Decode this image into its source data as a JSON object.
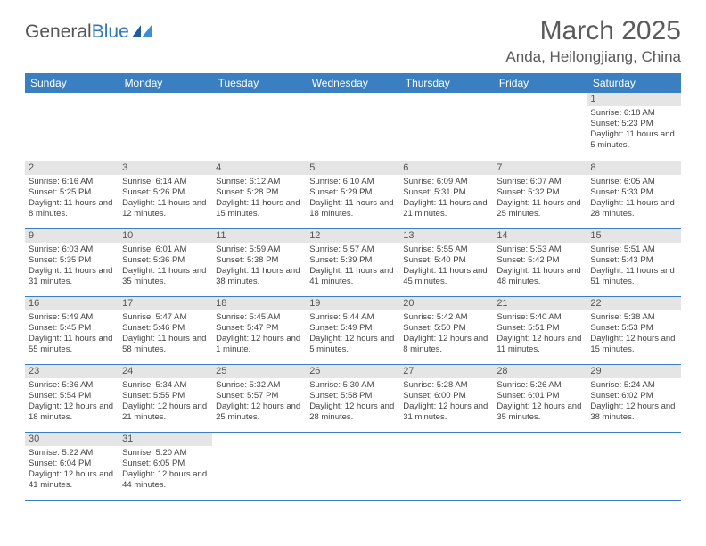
{
  "logo": {
    "part1": "General",
    "part2": "Blue"
  },
  "title": "March 2025",
  "location": "Anda, Heilongjiang, China",
  "colors": {
    "header_bg": "#3a7fc2",
    "header_text": "#ffffff",
    "daynum_bg": "#e5e5e5",
    "grid_line": "#3a7fc2",
    "text": "#444444"
  },
  "font": {
    "family": "Arial",
    "cell_size_pt": 7.5,
    "title_size_pt": 22
  },
  "weekdays": [
    "Sunday",
    "Monday",
    "Tuesday",
    "Wednesday",
    "Thursday",
    "Friday",
    "Saturday"
  ],
  "weeks": [
    [
      {
        "day": "",
        "sunrise": "",
        "sunset": "",
        "daylight": ""
      },
      {
        "day": "",
        "sunrise": "",
        "sunset": "",
        "daylight": ""
      },
      {
        "day": "",
        "sunrise": "",
        "sunset": "",
        "daylight": ""
      },
      {
        "day": "",
        "sunrise": "",
        "sunset": "",
        "daylight": ""
      },
      {
        "day": "",
        "sunrise": "",
        "sunset": "",
        "daylight": ""
      },
      {
        "day": "",
        "sunrise": "",
        "sunset": "",
        "daylight": ""
      },
      {
        "day": "1",
        "sunrise": "Sunrise: 6:18 AM",
        "sunset": "Sunset: 5:23 PM",
        "daylight": "Daylight: 11 hours and 5 minutes."
      }
    ],
    [
      {
        "day": "2",
        "sunrise": "Sunrise: 6:16 AM",
        "sunset": "Sunset: 5:25 PM",
        "daylight": "Daylight: 11 hours and 8 minutes."
      },
      {
        "day": "3",
        "sunrise": "Sunrise: 6:14 AM",
        "sunset": "Sunset: 5:26 PM",
        "daylight": "Daylight: 11 hours and 12 minutes."
      },
      {
        "day": "4",
        "sunrise": "Sunrise: 6:12 AM",
        "sunset": "Sunset: 5:28 PM",
        "daylight": "Daylight: 11 hours and 15 minutes."
      },
      {
        "day": "5",
        "sunrise": "Sunrise: 6:10 AM",
        "sunset": "Sunset: 5:29 PM",
        "daylight": "Daylight: 11 hours and 18 minutes."
      },
      {
        "day": "6",
        "sunrise": "Sunrise: 6:09 AM",
        "sunset": "Sunset: 5:31 PM",
        "daylight": "Daylight: 11 hours and 21 minutes."
      },
      {
        "day": "7",
        "sunrise": "Sunrise: 6:07 AM",
        "sunset": "Sunset: 5:32 PM",
        "daylight": "Daylight: 11 hours and 25 minutes."
      },
      {
        "day": "8",
        "sunrise": "Sunrise: 6:05 AM",
        "sunset": "Sunset: 5:33 PM",
        "daylight": "Daylight: 11 hours and 28 minutes."
      }
    ],
    [
      {
        "day": "9",
        "sunrise": "Sunrise: 6:03 AM",
        "sunset": "Sunset: 5:35 PM",
        "daylight": "Daylight: 11 hours and 31 minutes."
      },
      {
        "day": "10",
        "sunrise": "Sunrise: 6:01 AM",
        "sunset": "Sunset: 5:36 PM",
        "daylight": "Daylight: 11 hours and 35 minutes."
      },
      {
        "day": "11",
        "sunrise": "Sunrise: 5:59 AM",
        "sunset": "Sunset: 5:38 PM",
        "daylight": "Daylight: 11 hours and 38 minutes."
      },
      {
        "day": "12",
        "sunrise": "Sunrise: 5:57 AM",
        "sunset": "Sunset: 5:39 PM",
        "daylight": "Daylight: 11 hours and 41 minutes."
      },
      {
        "day": "13",
        "sunrise": "Sunrise: 5:55 AM",
        "sunset": "Sunset: 5:40 PM",
        "daylight": "Daylight: 11 hours and 45 minutes."
      },
      {
        "day": "14",
        "sunrise": "Sunrise: 5:53 AM",
        "sunset": "Sunset: 5:42 PM",
        "daylight": "Daylight: 11 hours and 48 minutes."
      },
      {
        "day": "15",
        "sunrise": "Sunrise: 5:51 AM",
        "sunset": "Sunset: 5:43 PM",
        "daylight": "Daylight: 11 hours and 51 minutes."
      }
    ],
    [
      {
        "day": "16",
        "sunrise": "Sunrise: 5:49 AM",
        "sunset": "Sunset: 5:45 PM",
        "daylight": "Daylight: 11 hours and 55 minutes."
      },
      {
        "day": "17",
        "sunrise": "Sunrise: 5:47 AM",
        "sunset": "Sunset: 5:46 PM",
        "daylight": "Daylight: 11 hours and 58 minutes."
      },
      {
        "day": "18",
        "sunrise": "Sunrise: 5:45 AM",
        "sunset": "Sunset: 5:47 PM",
        "daylight": "Daylight: 12 hours and 1 minute."
      },
      {
        "day": "19",
        "sunrise": "Sunrise: 5:44 AM",
        "sunset": "Sunset: 5:49 PM",
        "daylight": "Daylight: 12 hours and 5 minutes."
      },
      {
        "day": "20",
        "sunrise": "Sunrise: 5:42 AM",
        "sunset": "Sunset: 5:50 PM",
        "daylight": "Daylight: 12 hours and 8 minutes."
      },
      {
        "day": "21",
        "sunrise": "Sunrise: 5:40 AM",
        "sunset": "Sunset: 5:51 PM",
        "daylight": "Daylight: 12 hours and 11 minutes."
      },
      {
        "day": "22",
        "sunrise": "Sunrise: 5:38 AM",
        "sunset": "Sunset: 5:53 PM",
        "daylight": "Daylight: 12 hours and 15 minutes."
      }
    ],
    [
      {
        "day": "23",
        "sunrise": "Sunrise: 5:36 AM",
        "sunset": "Sunset: 5:54 PM",
        "daylight": "Daylight: 12 hours and 18 minutes."
      },
      {
        "day": "24",
        "sunrise": "Sunrise: 5:34 AM",
        "sunset": "Sunset: 5:55 PM",
        "daylight": "Daylight: 12 hours and 21 minutes."
      },
      {
        "day": "25",
        "sunrise": "Sunrise: 5:32 AM",
        "sunset": "Sunset: 5:57 PM",
        "daylight": "Daylight: 12 hours and 25 minutes."
      },
      {
        "day": "26",
        "sunrise": "Sunrise: 5:30 AM",
        "sunset": "Sunset: 5:58 PM",
        "daylight": "Daylight: 12 hours and 28 minutes."
      },
      {
        "day": "27",
        "sunrise": "Sunrise: 5:28 AM",
        "sunset": "Sunset: 6:00 PM",
        "daylight": "Daylight: 12 hours and 31 minutes."
      },
      {
        "day": "28",
        "sunrise": "Sunrise: 5:26 AM",
        "sunset": "Sunset: 6:01 PM",
        "daylight": "Daylight: 12 hours and 35 minutes."
      },
      {
        "day": "29",
        "sunrise": "Sunrise: 5:24 AM",
        "sunset": "Sunset: 6:02 PM",
        "daylight": "Daylight: 12 hours and 38 minutes."
      }
    ],
    [
      {
        "day": "30",
        "sunrise": "Sunrise: 5:22 AM",
        "sunset": "Sunset: 6:04 PM",
        "daylight": "Daylight: 12 hours and 41 minutes."
      },
      {
        "day": "31",
        "sunrise": "Sunrise: 5:20 AM",
        "sunset": "Sunset: 6:05 PM",
        "daylight": "Daylight: 12 hours and 44 minutes."
      },
      {
        "day": "",
        "sunrise": "",
        "sunset": "",
        "daylight": ""
      },
      {
        "day": "",
        "sunrise": "",
        "sunset": "",
        "daylight": ""
      },
      {
        "day": "",
        "sunrise": "",
        "sunset": "",
        "daylight": ""
      },
      {
        "day": "",
        "sunrise": "",
        "sunset": "",
        "daylight": ""
      },
      {
        "day": "",
        "sunrise": "",
        "sunset": "",
        "daylight": ""
      }
    ]
  ]
}
